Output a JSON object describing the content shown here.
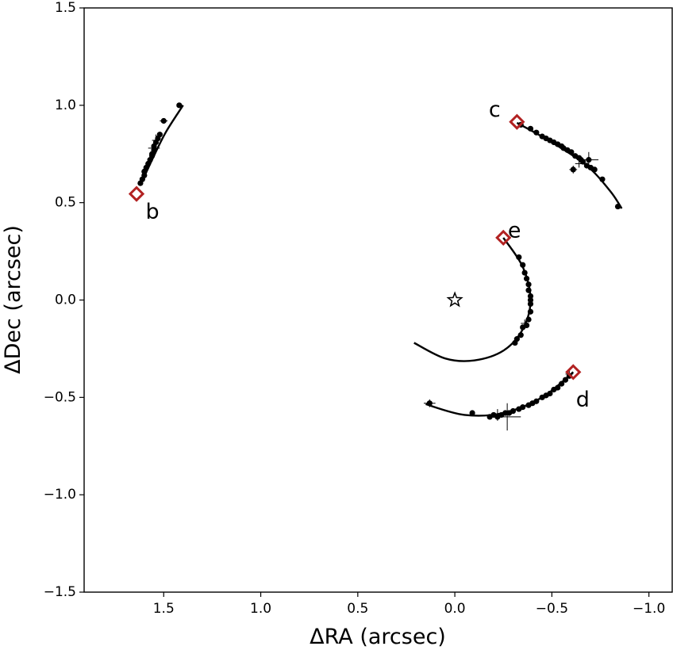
{
  "chart_data": {
    "type": "scatter",
    "title": "",
    "xlabel": "ΔRA (arcsec)",
    "ylabel": "ΔDec (arcsec)",
    "xlim": [
      1.91,
      -1.12
    ],
    "ylim": [
      -1.5,
      1.5
    ],
    "x_inverted": true,
    "grid": false,
    "legend": "none",
    "xticks": [
      1.5,
      1.0,
      0.5,
      0.0,
      -0.5,
      -1.0
    ],
    "xtick_labels": [
      "1.5",
      "1.0",
      "0.5",
      "0.0",
      "−0.5",
      "−1.0"
    ],
    "yticks": [
      -1.5,
      -1.0,
      -0.5,
      0.0,
      0.5,
      1.0,
      1.5
    ],
    "ytick_labels": [
      "−1.5",
      "−1.0",
      "−0.5",
      "0.0",
      "0.5",
      "1.0",
      "1.5"
    ],
    "star": {
      "x": 0.0,
      "y": 0.0,
      "marker": "open-star"
    },
    "marker_color": "#b22222",
    "planets": [
      {
        "label": "b",
        "marker": {
          "x": 1.64,
          "y": 0.545
        },
        "orbit": [
          [
            1.62,
            0.59
          ],
          [
            1.56,
            0.72
          ],
          [
            1.49,
            0.86
          ],
          [
            1.4,
            1.0
          ]
        ],
        "points": [
          [
            1.62,
            0.6
          ],
          [
            1.61,
            0.62
          ],
          [
            1.6,
            0.64
          ],
          [
            1.6,
            0.66
          ],
          [
            1.59,
            0.68
          ],
          [
            1.58,
            0.7
          ],
          [
            1.57,
            0.72
          ],
          [
            1.56,
            0.74
          ],
          [
            1.56,
            0.75
          ],
          [
            1.55,
            0.77
          ],
          [
            1.55,
            0.79
          ],
          [
            1.54,
            0.81
          ],
          [
            1.53,
            0.83
          ],
          [
            1.52,
            0.85
          ],
          [
            1.5,
            0.92
          ],
          [
            1.42,
            1.0
          ]
        ],
        "error_bars": [
          {
            "x": 1.55,
            "y": 0.78,
            "xerr": 0.03,
            "yerr": 0.03
          },
          {
            "x": 1.54,
            "y": 0.82,
            "xerr": 0.02,
            "yerr": 0.03
          },
          {
            "x": 1.5,
            "y": 0.92,
            "xerr": 0.02,
            "yerr": 0.01
          }
        ]
      },
      {
        "label": "c",
        "marker": {
          "x": -0.32,
          "y": 0.915
        },
        "orbit": [
          [
            -0.32,
            0.91
          ],
          [
            -0.5,
            0.81
          ],
          [
            -0.68,
            0.69
          ],
          [
            -0.8,
            0.56
          ],
          [
            -0.86,
            0.47
          ]
        ],
        "points": [
          [
            -0.34,
            0.9
          ],
          [
            -0.39,
            0.88
          ],
          [
            -0.42,
            0.86
          ],
          [
            -0.45,
            0.84
          ],
          [
            -0.47,
            0.83
          ],
          [
            -0.49,
            0.82
          ],
          [
            -0.51,
            0.81
          ],
          [
            -0.53,
            0.8
          ],
          [
            -0.55,
            0.79
          ],
          [
            -0.56,
            0.78
          ],
          [
            -0.58,
            0.77
          ],
          [
            -0.6,
            0.76
          ],
          [
            -0.62,
            0.74
          ],
          [
            -0.64,
            0.73
          ],
          [
            -0.65,
            0.72
          ],
          [
            -0.66,
            0.71
          ],
          [
            -0.68,
            0.69
          ],
          [
            -0.7,
            0.68
          ],
          [
            -0.72,
            0.67
          ],
          [
            -0.76,
            0.62
          ],
          [
            -0.84,
            0.48
          ],
          [
            -0.61,
            0.67
          ],
          [
            -0.69,
            0.72
          ]
        ],
        "error_bars": [
          {
            "x": -0.69,
            "y": 0.72,
            "xerr": 0.05,
            "yerr": 0.04
          },
          {
            "x": -0.61,
            "y": 0.67,
            "xerr": 0.02,
            "yerr": 0.02
          },
          {
            "x": -0.64,
            "y": 0.7,
            "xerr": 0.02,
            "yerr": 0.02
          }
        ]
      },
      {
        "label": "d",
        "marker": {
          "x": -0.61,
          "y": -0.37
        },
        "orbit": [
          [
            0.15,
            -0.535
          ],
          [
            -0.05,
            -0.59
          ],
          [
            -0.25,
            -0.58
          ],
          [
            -0.45,
            -0.5
          ],
          [
            -0.61,
            -0.37
          ]
        ],
        "points": [
          [
            0.13,
            -0.53
          ],
          [
            -0.09,
            -0.58
          ],
          [
            -0.18,
            -0.6
          ],
          [
            -0.2,
            -0.59
          ],
          [
            -0.22,
            -0.6
          ],
          [
            -0.24,
            -0.59
          ],
          [
            -0.26,
            -0.58
          ],
          [
            -0.28,
            -0.58
          ],
          [
            -0.3,
            -0.57
          ],
          [
            -0.33,
            -0.56
          ],
          [
            -0.35,
            -0.55
          ],
          [
            -0.38,
            -0.54
          ],
          [
            -0.4,
            -0.53
          ],
          [
            -0.42,
            -0.52
          ],
          [
            -0.45,
            -0.5
          ],
          [
            -0.47,
            -0.49
          ],
          [
            -0.49,
            -0.48
          ],
          [
            -0.51,
            -0.46
          ],
          [
            -0.53,
            -0.45
          ],
          [
            -0.55,
            -0.43
          ],
          [
            -0.57,
            -0.41
          ],
          [
            -0.59,
            -0.39
          ]
        ],
        "error_bars": [
          {
            "x": 0.13,
            "y": -0.53,
            "xerr": 0.03,
            "yerr": 0.02
          },
          {
            "x": -0.27,
            "y": -0.6,
            "xerr": 0.07,
            "yerr": 0.07
          },
          {
            "x": -0.22,
            "y": -0.59,
            "xerr": 0.04,
            "yerr": 0.03
          },
          {
            "x": -0.59,
            "y": -0.38,
            "xerr": 0.02,
            "yerr": 0.02
          }
        ]
      },
      {
        "label": "e",
        "marker": {
          "x": -0.25,
          "y": 0.32
        },
        "orbit": [
          [
            -0.25,
            0.32
          ],
          [
            -0.35,
            0.17
          ],
          [
            -0.39,
            0.0
          ],
          [
            -0.35,
            -0.15
          ],
          [
            -0.25,
            -0.26
          ],
          [
            -0.1,
            -0.31
          ],
          [
            0.05,
            -0.3
          ],
          [
            0.21,
            -0.22
          ]
        ],
        "points": [
          [
            -0.33,
            0.22
          ],
          [
            -0.35,
            0.18
          ],
          [
            -0.36,
            0.14
          ],
          [
            -0.37,
            0.11
          ],
          [
            -0.38,
            0.08
          ],
          [
            -0.38,
            0.05
          ],
          [
            -0.39,
            0.02
          ],
          [
            -0.39,
            0.0
          ],
          [
            -0.39,
            -0.02
          ],
          [
            -0.39,
            -0.06
          ],
          [
            -0.38,
            -0.1
          ],
          [
            -0.37,
            -0.13
          ],
          [
            -0.35,
            -0.14
          ],
          [
            -0.34,
            -0.18
          ],
          [
            -0.32,
            -0.2
          ],
          [
            -0.31,
            -0.22
          ]
        ],
        "error_bars": [
          {
            "x": -0.36,
            "y": -0.12,
            "xerr": 0.02,
            "yerr": 0.02
          }
        ]
      }
    ]
  }
}
